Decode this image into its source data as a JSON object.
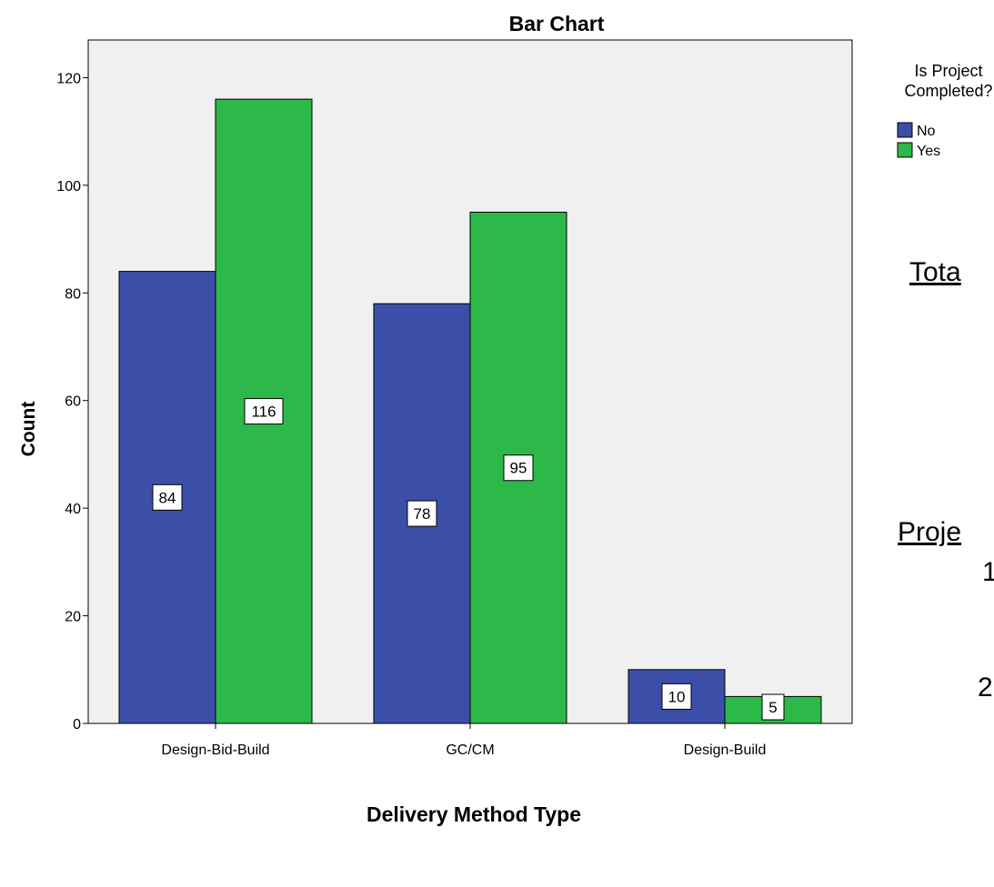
{
  "chart_data": {
    "type": "bar",
    "title": "Bar Chart",
    "xlabel": "Delivery Method Type",
    "ylabel": "Count",
    "categories": [
      "Design-Bid-Build",
      "GC/CM",
      "Design-Build"
    ],
    "series": [
      {
        "name": "No",
        "values": [
          84,
          78,
          10
        ],
        "color": "#3b4fa8"
      },
      {
        "name": "Yes",
        "values": [
          116,
          95,
          5
        ],
        "color": "#2db84a"
      }
    ],
    "ylim": [
      0,
      127
    ],
    "yticks": [
      0,
      20,
      40,
      60,
      80,
      100,
      120
    ],
    "data_labels": [
      "84",
      "78",
      "10",
      "116",
      "95",
      "5"
    ],
    "legend": {
      "title_line1": "Is Project",
      "title_line2": "Completed?",
      "placement": "right"
    },
    "plot_background": "#f0f0f0",
    "grid": false
  },
  "side_text": {
    "line1": "Tota",
    "line2": "Proje",
    "line3": "1",
    "line4": "2"
  }
}
